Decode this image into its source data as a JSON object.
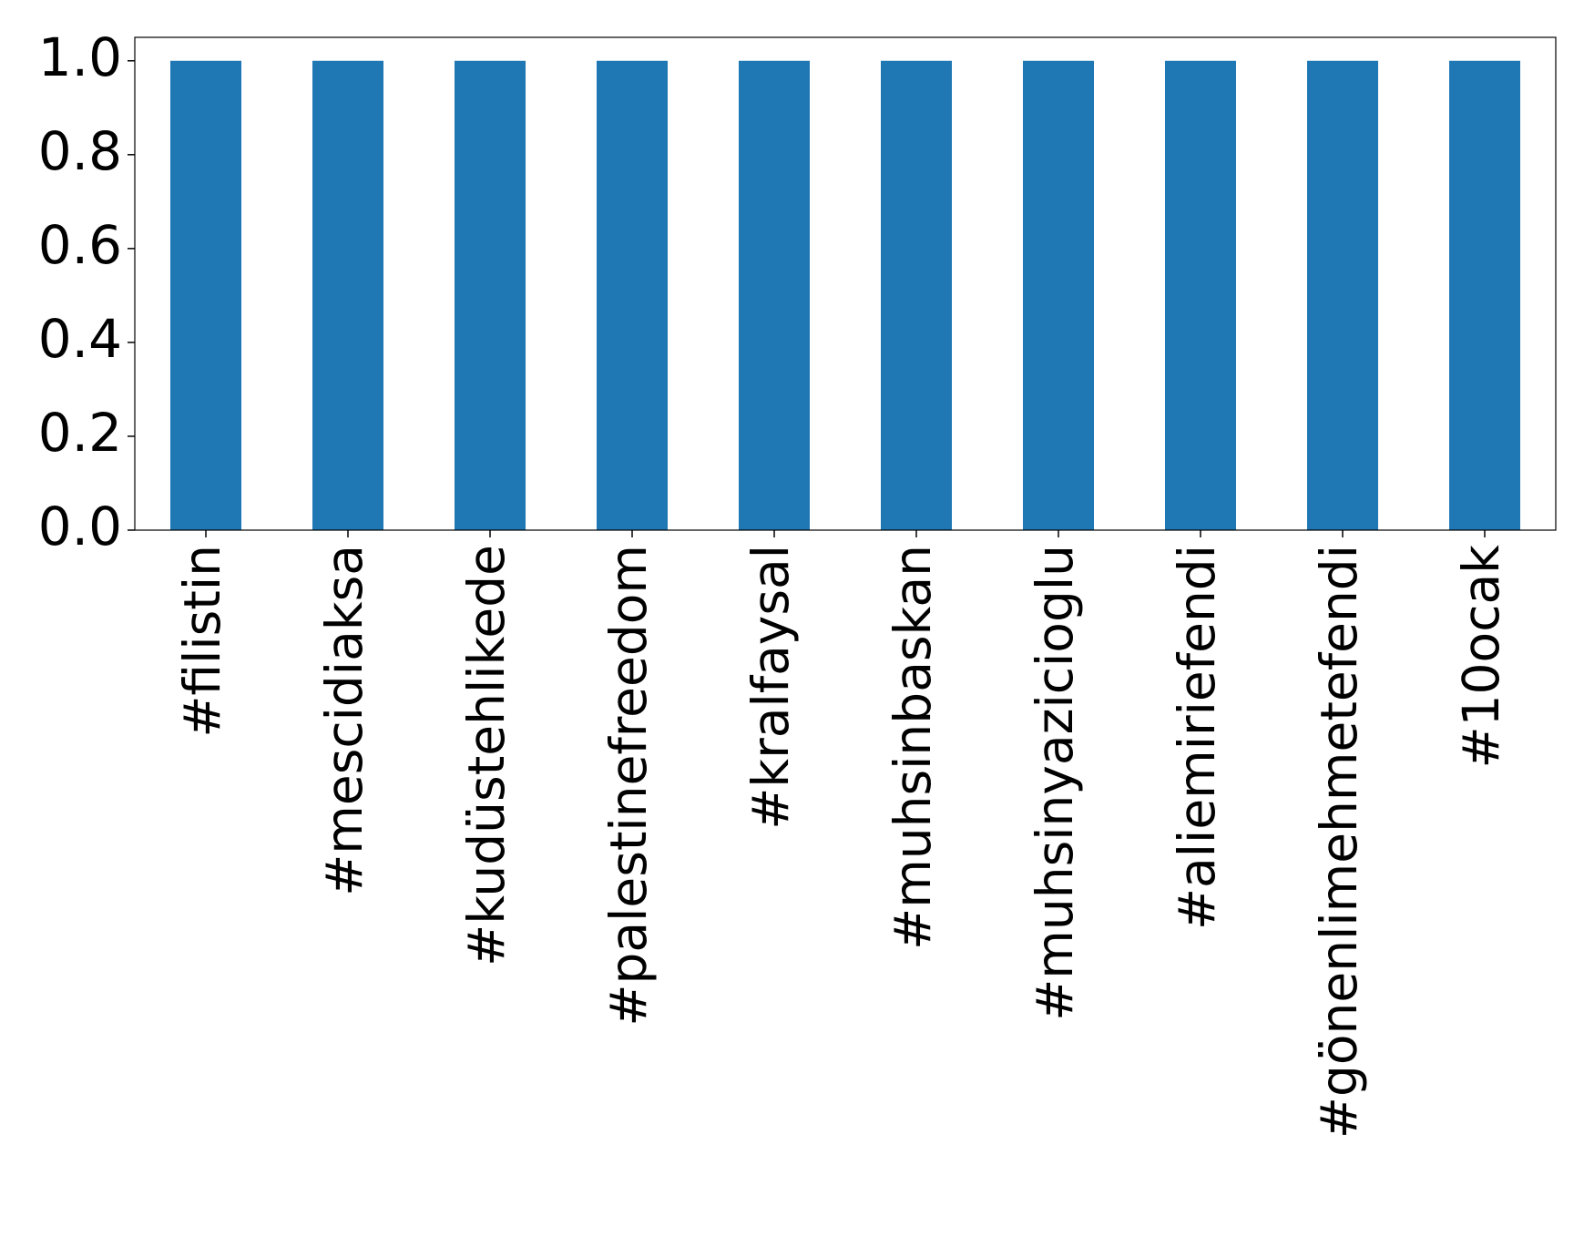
{
  "chart_data": {
    "type": "bar",
    "categories": [
      "#filistin",
      "#mescidiaksa",
      "#kudüstehlikede",
      "#palestinefreedom",
      "#kralfaysal",
      "#muhsinbaskan",
      "#muhsinyazicioglu",
      "#aliemiriefendi",
      "#gönenlimehmetefendi",
      "#10ocak"
    ],
    "values": [
      1,
      1,
      1,
      1,
      1,
      1,
      1,
      1,
      1,
      1
    ],
    "color": "#1f77b4",
    "ylim": [
      0,
      1.05
    ],
    "yticks": [
      {
        "value": 0,
        "label": "0.0"
      },
      {
        "value": 0.2,
        "label": "0.2"
      },
      {
        "value": 0.4,
        "label": "0.4"
      },
      {
        "value": 0.6,
        "label": "0.6"
      },
      {
        "value": 0.8,
        "label": "0.8"
      },
      {
        "value": 1,
        "label": "1.0"
      }
    ],
    "grid": false
  }
}
